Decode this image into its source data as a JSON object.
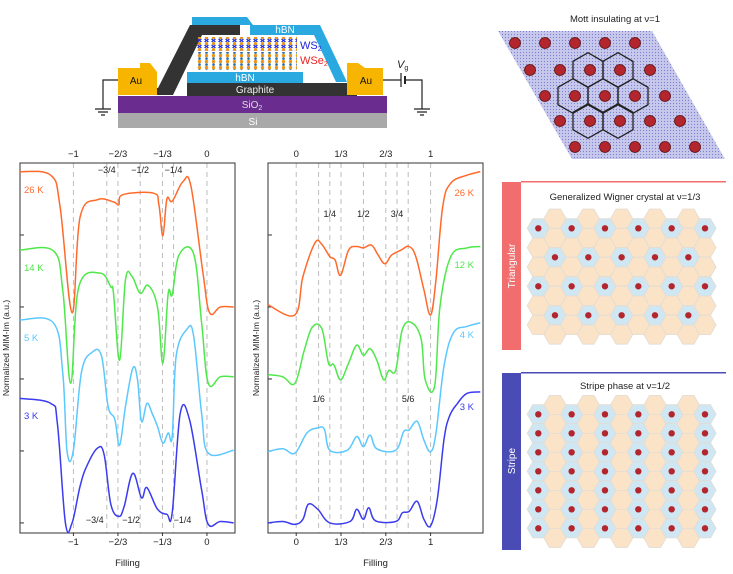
{
  "device": {
    "hbn_top": "hBN",
    "ws2": "WS",
    "ws2_sub": "2",
    "wse2": "WSe",
    "wse2_sub": "2",
    "hbn_bottom": "hBN",
    "graphite": "Graphite",
    "sio2": "SiO",
    "sio2_sub": "2",
    "si": "Si",
    "au_left": "Au",
    "au_right": "Au",
    "vg": "V",
    "vg_sub": "g",
    "colors": {
      "hbn": "#29a9e0",
      "graphite": "#333333",
      "sio2": "#6a2c8e",
      "si": "#a9a9a9",
      "au": "#f7b500",
      "ws2_text": "#2424d8",
      "wse2_text": "#ee2222"
    }
  },
  "panels": {
    "mott": {
      "title": "Mott insulating at ν=1"
    },
    "wigner": {
      "title": "Generalized Wigner crystal at ν=1/3",
      "side_label": "Triangular",
      "bar_color": "#f26d6d"
    },
    "stripe": {
      "title": "Stripe phase at ν=1/2",
      "side_label": "Stripe",
      "bar_color": "#4b4bb5"
    },
    "colors": {
      "electron": "#b3262e",
      "occupied_site": "#cfe7f2",
      "empty_site": "#fbe3c8"
    }
  },
  "chart_data": [
    {
      "type": "line",
      "xlabel": "Filling",
      "ylabel": "Normalized MIM-Im (a.u.)",
      "xlim": [
        -1.4,
        0.21
      ],
      "ylim": [
        -0.14,
        5.0
      ],
      "x_ticks": [
        "−1",
        "−2/3",
        "−1/3",
        "0"
      ],
      "x_tick_values": [
        -1,
        -0.6667,
        -0.3333,
        0
      ],
      "y_ticks": [
        0,
        1,
        2,
        3,
        4,
        5
      ],
      "guides": [
        -1,
        -0.75,
        -0.6667,
        -0.5,
        -0.3333,
        -0.25,
        0
      ],
      "annotations": {
        "upper": [
          {
            "text": "−3/4",
            "x": -0.75
          },
          {
            "text": "−1/2",
            "x": -0.5
          },
          {
            "text": "−1/4",
            "x": -0.25
          }
        ],
        "lower": [
          {
            "text": "−3/4",
            "x": -0.75
          },
          {
            "text": "−1/2",
            "x": -0.5
          },
          {
            "text": "−1/4",
            "x": -0.25
          }
        ]
      },
      "series": [
        {
          "name": "26 K",
          "color": "#ff6a2b",
          "points": [
            [
              -1.4,
              4.88
            ],
            [
              -1.17,
              4.83
            ],
            [
              -1.1,
              4.39
            ],
            [
              -1.01,
              2.92
            ],
            [
              -0.95,
              4.25
            ],
            [
              -0.82,
              4.49
            ],
            [
              -0.7,
              4.46
            ],
            [
              -0.66,
              4.42
            ],
            [
              -0.63,
              4.56
            ],
            [
              -0.4,
              4.58
            ],
            [
              -0.36,
              4.42
            ],
            [
              -0.33,
              3.99
            ],
            [
              -0.3,
              4.5
            ],
            [
              -0.26,
              4.47
            ],
            [
              -0.18,
              4.74
            ],
            [
              -0.12,
              4.68
            ],
            [
              -0.03,
              3.47
            ],
            [
              0.02,
              2.92
            ],
            [
              0.1,
              3.0
            ],
            [
              0.2,
              3.0
            ]
          ]
        },
        {
          "name": "14 K",
          "color": "#4ee84a",
          "points": [
            [
              -1.4,
              3.79
            ],
            [
              -1.15,
              3.78
            ],
            [
              -1.08,
              3.24
            ],
            [
              -1.02,
              1.94
            ],
            [
              -0.96,
              3.28
            ],
            [
              -0.8,
              3.47
            ],
            [
              -0.72,
              3.28
            ],
            [
              -0.7,
              3.19
            ],
            [
              -0.654,
              2.26
            ],
            [
              -0.61,
              3.38
            ],
            [
              -0.56,
              3.42
            ],
            [
              -0.5,
              3.19
            ],
            [
              -0.44,
              3.3
            ],
            [
              -0.37,
              3.0
            ],
            [
              -0.33,
              2.22
            ],
            [
              -0.29,
              3.19
            ],
            [
              -0.26,
              3.17
            ],
            [
              -0.21,
              3.72
            ],
            [
              -0.1,
              3.74
            ],
            [
              -0.04,
              2.78
            ],
            [
              0.01,
              1.94
            ],
            [
              0.1,
              2.03
            ],
            [
              0.2,
              2.03
            ]
          ]
        },
        {
          "name": "5 K",
          "color": "#5bc8ff",
          "points": [
            [
              -1.4,
              2.82
            ],
            [
              -1.15,
              2.78
            ],
            [
              -1.08,
              2.09
            ],
            [
              -1.047,
              0.99
            ],
            [
              -1.0,
              1.01
            ],
            [
              -0.94,
              2.09
            ],
            [
              -0.86,
              2.37
            ],
            [
              -0.79,
              2.32
            ],
            [
              -0.74,
              1.62
            ],
            [
              -0.69,
              1.44
            ],
            [
              -0.654,
              1.08
            ],
            [
              -0.61,
              1.62
            ],
            [
              -0.555,
              2.15
            ],
            [
              -0.52,
              1.99
            ],
            [
              -0.49,
              1.41
            ],
            [
              -0.45,
              1.66
            ],
            [
              -0.41,
              1.52
            ],
            [
              -0.37,
              1.34
            ],
            [
              -0.33,
              1.11
            ],
            [
              -0.29,
              1.25
            ],
            [
              -0.26,
              1.2
            ],
            [
              -0.23,
              2.32
            ],
            [
              -0.15,
              2.69
            ],
            [
              -0.1,
              2.6
            ],
            [
              -0.04,
              1.52
            ],
            [
              0.01,
              0.97
            ],
            [
              0.2,
              1.01
            ]
          ]
        },
        {
          "name": "3 K",
          "color": "#3b3bef",
          "points": [
            [
              -1.4,
              1.73
            ],
            [
              -1.17,
              1.66
            ],
            [
              -1.12,
              1.38
            ],
            [
              -1.06,
              0.0
            ],
            [
              -1.01,
              0.0
            ],
            [
              -0.95,
              0.51
            ],
            [
              -0.9,
              0.79
            ],
            [
              -0.82,
              1.04
            ],
            [
              -0.77,
              0.95
            ],
            [
              -0.72,
              0.26
            ],
            [
              -0.66,
              0.09
            ],
            [
              -0.62,
              0.23
            ],
            [
              -0.555,
              0.69
            ],
            [
              -0.49,
              0.35
            ],
            [
              -0.45,
              0.49
            ],
            [
              -0.37,
              0.19
            ],
            [
              -0.3,
              0.12
            ],
            [
              -0.26,
              0.14
            ],
            [
              -0.2,
              1.52
            ],
            [
              -0.13,
              1.43
            ],
            [
              -0.04,
              0.46
            ],
            [
              0.01,
              -0.02
            ],
            [
              0.1,
              0.02
            ],
            [
              0.2,
              0.0
            ]
          ]
        }
      ]
    },
    {
      "type": "line",
      "xlabel": "Filling",
      "ylabel": "Normalized MIM-Im (a.u.)",
      "xlim": [
        -0.21,
        1.39
      ],
      "ylim": [
        -0.14,
        5.0
      ],
      "x_ticks": [
        "0",
        "1/3",
        "2/3",
        "1"
      ],
      "x_tick_values": [
        0,
        0.3333,
        0.6667,
        1
      ],
      "y_ticks": [
        0,
        1,
        2,
        3,
        4,
        5
      ],
      "guides": [
        0,
        0.1667,
        0.25,
        0.3333,
        0.5,
        0.6667,
        0.75,
        0.8333,
        1
      ],
      "annotations": {
        "upper": [
          {
            "text": "1/4",
            "x": 0.25
          },
          {
            "text": "1/2",
            "x": 0.5
          },
          {
            "text": "3/4",
            "x": 0.75
          }
        ],
        "lower": [
          {
            "text": "1/6",
            "x": 0.1667
          },
          {
            "text": "5/6",
            "x": 0.8333
          }
        ]
      },
      "series": [
        {
          "name": "26 K",
          "color": "#ff6a2b",
          "points": [
            [
              -0.21,
              3.03
            ],
            [
              -0.01,
              2.89
            ],
            [
              0.05,
              3.42
            ],
            [
              0.14,
              3.89
            ],
            [
              0.19,
              3.87
            ],
            [
              0.25,
              3.7
            ],
            [
              0.29,
              3.65
            ],
            [
              0.33,
              3.44
            ],
            [
              0.39,
              3.79
            ],
            [
              0.45,
              3.84
            ],
            [
              0.5,
              3.82
            ],
            [
              0.56,
              3.86
            ],
            [
              0.61,
              3.72
            ],
            [
              0.66,
              3.6
            ],
            [
              0.71,
              3.72
            ],
            [
              0.78,
              3.79
            ],
            [
              0.84,
              3.84
            ],
            [
              0.89,
              3.7
            ],
            [
              0.95,
              3.24
            ],
            [
              1.0,
              2.89
            ],
            [
              1.04,
              3.38
            ],
            [
              1.09,
              4.39
            ],
            [
              1.15,
              4.72
            ],
            [
              1.27,
              4.83
            ],
            [
              1.37,
              4.88
            ]
          ]
        },
        {
          "name": "12 K",
          "color": "#4ee84a",
          "points": [
            [
              -0.21,
              2.06
            ],
            [
              -0.1,
              2.03
            ],
            [
              -0.01,
              1.94
            ],
            [
              0.06,
              2.4
            ],
            [
              0.12,
              2.72
            ],
            [
              0.19,
              2.7
            ],
            [
              0.24,
              2.22
            ],
            [
              0.28,
              2.2
            ],
            [
              0.33,
              1.99
            ],
            [
              0.39,
              2.22
            ],
            [
              0.45,
              2.47
            ],
            [
              0.5,
              2.33
            ],
            [
              0.55,
              2.42
            ],
            [
              0.6,
              2.26
            ],
            [
              0.65,
              1.99
            ],
            [
              0.69,
              2.12
            ],
            [
              0.74,
              2.12
            ],
            [
              0.79,
              2.69
            ],
            [
              0.86,
              2.78
            ],
            [
              0.93,
              2.55
            ],
            [
              0.96,
              1.99
            ],
            [
              1.03,
              1.9
            ],
            [
              1.07,
              3.01
            ],
            [
              1.15,
              3.7
            ],
            [
              1.27,
              3.82
            ],
            [
              1.37,
              3.84
            ]
          ]
        },
        {
          "name": "4 K",
          "color": "#5bc8ff",
          "points": [
            [
              -0.21,
              0.99
            ],
            [
              -0.1,
              1.03
            ],
            [
              -0.01,
              0.97
            ],
            [
              0.08,
              1.25
            ],
            [
              0.16,
              1.32
            ],
            [
              0.21,
              1.3
            ],
            [
              0.25,
              1.01
            ],
            [
              0.38,
              1.01
            ],
            [
              0.45,
              1.2
            ],
            [
              0.5,
              1.06
            ],
            [
              0.55,
              1.22
            ],
            [
              0.6,
              1.03
            ],
            [
              0.74,
              1.01
            ],
            [
              0.8,
              1.27
            ],
            [
              0.84,
              1.29
            ],
            [
              0.9,
              1.41
            ],
            [
              0.95,
              1.15
            ],
            [
              1.0,
              0.99
            ],
            [
              1.04,
              1.25
            ],
            [
              1.1,
              2.18
            ],
            [
              1.17,
              2.64
            ],
            [
              1.27,
              2.73
            ],
            [
              1.37,
              2.78
            ]
          ]
        },
        {
          "name": "3 K",
          "color": "#3b3bef",
          "points": [
            [
              -0.21,
              0.0
            ],
            [
              -0.1,
              0.02
            ],
            [
              -0.01,
              -0.02
            ],
            [
              0.05,
              0.05
            ],
            [
              0.09,
              0.26
            ],
            [
              0.16,
              0.19
            ],
            [
              0.25,
              0.0
            ],
            [
              0.4,
              0.02
            ],
            [
              0.45,
              0.19
            ],
            [
              0.5,
              0.05
            ],
            [
              0.54,
              0.21
            ],
            [
              0.59,
              0.03
            ],
            [
              0.74,
              0.02
            ],
            [
              0.79,
              0.14
            ],
            [
              0.84,
              0.16
            ],
            [
              0.9,
              0.3
            ],
            [
              0.95,
              0.05
            ],
            [
              1.0,
              -0.04
            ],
            [
              1.05,
              0.33
            ],
            [
              1.1,
              1.16
            ],
            [
              1.14,
              1.48
            ],
            [
              1.2,
              1.66
            ],
            [
              1.27,
              1.8
            ],
            [
              1.37,
              1.82
            ]
          ]
        }
      ]
    }
  ]
}
